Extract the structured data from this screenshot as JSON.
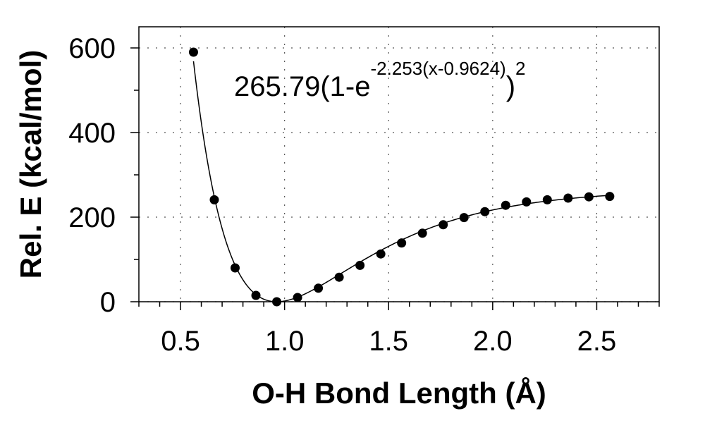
{
  "chart_data": {
    "type": "scatter",
    "title": "",
    "xlabel": "O-H Bond Length (Å)",
    "ylabel": "Rel. E (kcal/mol)",
    "xlim": [
      0.3,
      2.8
    ],
    "ylim": [
      0,
      650
    ],
    "xticks": [
      0.5,
      1.0,
      1.5,
      2.0,
      2.5
    ],
    "xtick_labels": [
      "0.5",
      "1.0",
      "1.5",
      "2.0",
      "2.5"
    ],
    "yticks": [
      0,
      200,
      400,
      600
    ],
    "ytick_labels": [
      "0",
      "200",
      "400",
      "600"
    ],
    "grid": "dotted",
    "legend": "none",
    "fit": {
      "D": 265.79,
      "a": 2.253,
      "r0": 0.9624,
      "equation": {
        "main": "265.79(1-e",
        "exponent": "-2.253(x-0.9624)",
        "close": ")",
        "power": "2"
      }
    },
    "x": [
      0.5624,
      0.6624,
      0.7624,
      0.8624,
      0.9624,
      1.0624,
      1.1624,
      1.2624,
      1.3624,
      1.4624,
      1.5624,
      1.6624,
      1.7624,
      1.8624,
      1.9624,
      2.0624,
      2.1624,
      2.2624,
      2.3624,
      2.4624,
      2.5624
    ],
    "y": [
      590,
      241,
      80,
      15,
      0,
      10,
      32,
      58,
      86,
      113,
      139,
      162,
      182,
      199,
      213,
      228,
      236,
      241,
      245,
      248,
      249
    ],
    "colors": {
      "marker": "#000000",
      "line": "#000000",
      "grid": "#555555"
    }
  }
}
